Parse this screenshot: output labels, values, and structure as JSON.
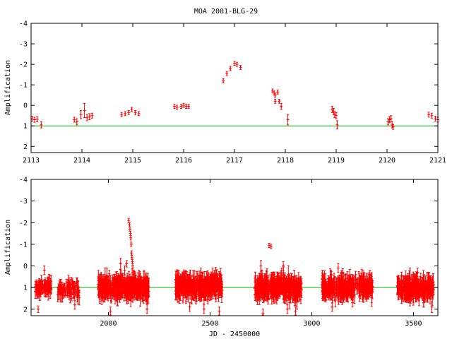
{
  "title": "MOA 2001-BLG-29",
  "colors": {
    "points": "#ff0000",
    "reference_line": "#00bb00",
    "axes": "#000000"
  },
  "chart_data": [
    {
      "type": "scatter",
      "ylabel": "Amplification",
      "xlabel": "",
      "xlim": [
        2113,
        2121
      ],
      "ylim": [
        -4,
        2.3
      ],
      "y_inverted": true,
      "xticks": [
        2113,
        2114,
        2115,
        2116,
        2117,
        2118,
        2119,
        2120,
        2121
      ],
      "yticks": [
        -4,
        -3,
        -2,
        -1,
        0,
        1,
        2
      ],
      "reference_y": 1,
      "grid": false,
      "series": [
        {
          "points": [
            [
              2113.02,
              0.65,
              0.12
            ],
            [
              2113.07,
              0.7,
              0.12
            ],
            [
              2113.12,
              0.68,
              0.12
            ],
            [
              2113.2,
              0.95,
              0.15
            ],
            [
              2113.85,
              0.7,
              0.12
            ],
            [
              2113.9,
              0.8,
              0.15
            ],
            [
              2113.98,
              0.45,
              0.2
            ],
            [
              2114.05,
              0.25,
              0.35
            ],
            [
              2114.1,
              0.6,
              0.15
            ],
            [
              2114.15,
              0.55,
              0.15
            ],
            [
              2114.2,
              0.5,
              0.12
            ],
            [
              2114.78,
              0.45,
              0.1
            ],
            [
              2114.85,
              0.4,
              0.1
            ],
            [
              2114.92,
              0.35,
              0.1
            ],
            [
              2114.98,
              0.2,
              0.1
            ],
            [
              2115.05,
              0.35,
              0.1
            ],
            [
              2115.12,
              0.4,
              0.1
            ],
            [
              2115.82,
              0.05,
              0.1
            ],
            [
              2115.87,
              0.1,
              0.1
            ],
            [
              2115.95,
              0.05,
              0.1
            ],
            [
              2116.0,
              0.0,
              0.1
            ],
            [
              2116.05,
              0.05,
              0.1
            ],
            [
              2116.1,
              0.05,
              0.1
            ],
            [
              2116.78,
              -1.2,
              0.1
            ],
            [
              2116.85,
              -1.55,
              0.1
            ],
            [
              2116.92,
              -1.8,
              0.1
            ],
            [
              2117.0,
              -2.05,
              0.1
            ],
            [
              2117.05,
              -2.0,
              0.1
            ],
            [
              2117.12,
              -1.85,
              0.1
            ],
            [
              2117.75,
              -0.7,
              0.1
            ],
            [
              2117.78,
              -0.6,
              0.1
            ],
            [
              2117.8,
              -0.5,
              0.1
            ],
            [
              2117.85,
              -0.65,
              0.1
            ],
            [
              2117.8,
              -0.2,
              0.1
            ],
            [
              2117.88,
              -0.2,
              0.1
            ],
            [
              2117.92,
              0.05,
              0.15
            ],
            [
              2118.05,
              0.7,
              0.25
            ],
            [
              2118.92,
              0.2,
              0.15
            ],
            [
              2118.95,
              0.3,
              0.15
            ],
            [
              2118.97,
              0.45,
              0.15
            ],
            [
              2119.0,
              0.5,
              0.15
            ],
            [
              2119.02,
              0.95,
              0.2
            ],
            [
              2120.02,
              0.8,
              0.15
            ],
            [
              2120.05,
              0.7,
              0.15
            ],
            [
              2120.08,
              0.65,
              0.15
            ],
            [
              2120.1,
              0.95,
              0.15
            ],
            [
              2120.12,
              1.05,
              0.12
            ],
            [
              2120.82,
              0.45,
              0.12
            ],
            [
              2120.88,
              0.5,
              0.12
            ],
            [
              2120.95,
              0.65,
              0.12
            ],
            [
              2121.0,
              0.7,
              0.12
            ]
          ]
        }
      ]
    },
    {
      "type": "scatter",
      "ylabel": "Amplification",
      "xlabel": "JD - 2450000",
      "xlim": [
        1620,
        3620
      ],
      "ylim": [
        -4,
        2.3
      ],
      "y_inverted": true,
      "xticks": [
        2000,
        2500,
        3000,
        3500
      ],
      "yticks": [
        -4,
        -3,
        -2,
        -1,
        0,
        1,
        2
      ],
      "reference_y": 1,
      "grid": false,
      "segments": [
        {
          "x0": 1640,
          "x1": 1720,
          "n": 90,
          "center": 1.0,
          "spread": 0.35,
          "err": 0.25
        },
        {
          "x0": 1750,
          "x1": 1860,
          "n": 70,
          "center": 1.1,
          "spread": 0.4,
          "err": 0.3
        },
        {
          "x0": 1950,
          "x1": 2200,
          "n": 420,
          "center": 1.0,
          "spread": 0.45,
          "err": 0.35
        },
        {
          "x0": 2330,
          "x1": 2560,
          "n": 380,
          "center": 0.95,
          "spread": 0.45,
          "err": 0.35
        },
        {
          "x0": 2720,
          "x1": 2950,
          "n": 380,
          "center": 1.0,
          "spread": 0.5,
          "err": 0.35
        },
        {
          "x0": 3050,
          "x1": 3300,
          "n": 330,
          "center": 1.0,
          "spread": 0.45,
          "err": 0.35
        },
        {
          "x0": 3420,
          "x1": 3600,
          "n": 300,
          "center": 1.05,
          "spread": 0.45,
          "err": 0.35
        }
      ],
      "notable_points": [
        [
          1655,
          2.0,
          0.15
        ],
        [
          1685,
          0.2,
          0.2
        ],
        [
          1810,
          0.95,
          0.2
        ],
        [
          1835,
          1.8,
          0.2
        ],
        [
          2100,
          -2.1,
          0.1
        ],
        [
          2104,
          -1.9,
          0.1
        ],
        [
          2106,
          -1.7,
          0.1
        ],
        [
          2108,
          -1.5,
          0.1
        ],
        [
          2110,
          -1.3,
          0.1
        ],
        [
          2112,
          -1.0,
          0.1
        ],
        [
          2114,
          -0.6,
          0.1
        ],
        [
          2116,
          -0.4,
          0.1
        ],
        [
          2118,
          -0.2,
          0.1
        ],
        [
          2120,
          0.0,
          0.1
        ],
        [
          2122,
          0.3,
          0.1
        ],
        [
          2090,
          -0.1,
          0.15
        ],
        [
          2080,
          0.2,
          0.2
        ],
        [
          2060,
          -0.1,
          0.25
        ],
        [
          2010,
          2.1,
          0.2
        ],
        [
          2190,
          2.0,
          0.2
        ],
        [
          2400,
          1.9,
          0.2
        ],
        [
          2470,
          2.0,
          0.2
        ],
        [
          2545,
          2.1,
          0.2
        ],
        [
          2455,
          0.3,
          0.2
        ],
        [
          2790,
          -0.95,
          0.1
        ],
        [
          2800,
          -0.9,
          0.1
        ],
        [
          2860,
          0.0,
          0.2
        ],
        [
          2880,
          2.0,
          0.2
        ],
        [
          2920,
          2.1,
          0.2
        ],
        [
          2760,
          2.2,
          0.2
        ],
        [
          2750,
          0.0,
          0.25
        ],
        [
          3095,
          0.4,
          0.2
        ],
        [
          3130,
          0.1,
          0.2
        ],
        [
          3100,
          1.9,
          0.2
        ],
        [
          3200,
          1.7,
          0.2
        ],
        [
          3520,
          0.3,
          0.2
        ],
        [
          3590,
          1.9,
          0.25
        ],
        [
          3550,
          1.7,
          0.2
        ]
      ]
    }
  ]
}
